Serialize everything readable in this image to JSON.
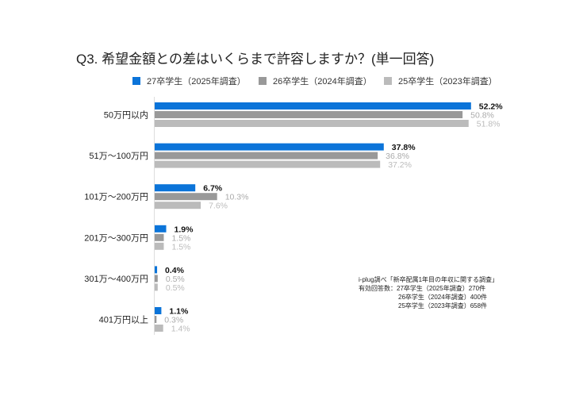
{
  "chart_data": {
    "type": "bar",
    "orientation": "horizontal",
    "title": "Q3. 希望金額との差はいくらまで許容しますか？(単一回答)",
    "categories": [
      "50万円以内",
      "51万～100万円",
      "101万～200万円",
      "201万～300万円",
      "301万～400万円",
      "401万円以上"
    ],
    "series": [
      {
        "name": "27卒学生（2025年調査）",
        "color": "#0B74D9",
        "label_color": "#111111",
        "bold": true,
        "values": [
          52.2,
          37.8,
          6.7,
          1.9,
          0.4,
          1.1
        ]
      },
      {
        "name": "26卒学生（2024年調査）",
        "color": "#999999",
        "label_color": "#aaaaaa",
        "bold": false,
        "values": [
          50.8,
          36.8,
          10.3,
          1.5,
          0.5,
          0.3
        ]
      },
      {
        "name": "25卒学生（2023年調査）",
        "color": "#BBBBBB",
        "label_color": "#bbbbbb",
        "bold": false,
        "values": [
          51.8,
          37.2,
          7.6,
          1.5,
          0.5,
          1.4
        ]
      }
    ],
    "value_suffix": "%",
    "legend": "top",
    "grid": false
  },
  "notes": [
    "i-plug調べ「新卒配属1年目の年収に関する調査」",
    "有効回答数：27卒学生（2025年調査）270件",
    "26卒学生（2024年調査）400件",
    "25卒学生（2023年調査）658件"
  ]
}
